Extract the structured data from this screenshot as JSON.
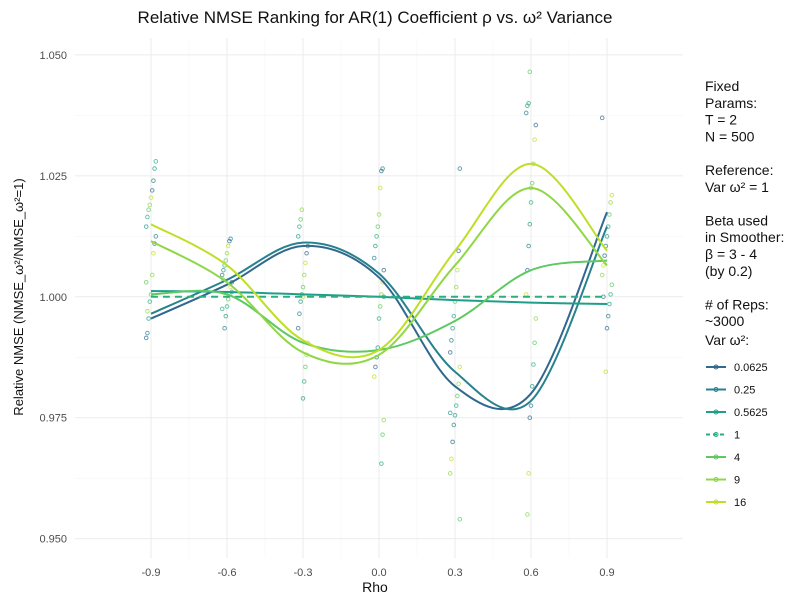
{
  "chart_data": {
    "type": "line",
    "title": "Relative NMSE Ranking for AR(1) Coefficient ρ vs. ω² Variance",
    "xlabel": "Rho",
    "ylabel": "Relative NMSE (NMSE_ω²/NMSE_ω²=1)",
    "xlim": [
      -1.2,
      1.2
    ],
    "ylim": [
      0.946,
      1.0535
    ],
    "x_ticks": [
      -0.9,
      -0.6,
      -0.3,
      0.0,
      0.3,
      0.6,
      0.9
    ],
    "x_tick_labels": [
      "-0.9",
      "-0.6",
      "-0.3",
      "0.0",
      "0.3",
      "0.6",
      "0.9"
    ],
    "y_ticks": [
      0.95,
      0.975,
      1.0,
      1.025,
      1.05
    ],
    "y_tick_labels": [
      "0.950",
      "0.975",
      "1.000",
      "1.025",
      "1.050"
    ],
    "grid": true,
    "legend_position": "right",
    "legend_title": "Var ω²:",
    "side_text": [
      "Fixed",
      "Params:",
      "T = 2",
      "N = 500",
      "",
      "Reference:",
      "Var ω² = 1",
      "",
      "Beta used",
      "in Smoother:",
      "β = 3 - 4",
      "(by 0.2)",
      "",
      "# of Reps:",
      "~3000"
    ],
    "series": [
      {
        "name": "0.0625",
        "color": "#31688e",
        "dash": false,
        "x": [
          -0.9,
          -0.6,
          -0.3,
          0.0,
          0.3,
          0.6,
          0.9
        ],
        "y": [
          0.9955,
          1.0025,
          1.0105,
          1.004,
          0.9815,
          0.98,
          1.0175
        ]
      },
      {
        "name": "0.25",
        "color": "#26828e",
        "dash": false,
        "x": [
          -0.9,
          -0.6,
          -0.3,
          0.0,
          0.3,
          0.6,
          0.9
        ],
        "y": [
          0.9965,
          1.0035,
          1.0112,
          1.0048,
          0.9845,
          0.9785,
          1.0145
        ]
      },
      {
        "name": "0.5625",
        "color": "#1f9e89",
        "dash": false,
        "x": [
          -0.9,
          -0.6,
          -0.3,
          0.0,
          0.3,
          0.6,
          0.9
        ],
        "y": [
          1.0012,
          1.001,
          1.0005,
          1.0,
          0.9993,
          0.9988,
          0.9985
        ]
      },
      {
        "name": "1",
        "color": "#29af7f",
        "dash": true,
        "x": [
          -0.9,
          -0.6,
          -0.3,
          0.0,
          0.3,
          0.6,
          0.9
        ],
        "y": [
          1.0,
          1.0,
          1.0,
          1.0,
          1.0,
          1.0,
          1.0
        ]
      },
      {
        "name": "4",
        "color": "#5ec962",
        "dash": false,
        "x": [
          -0.9,
          -0.6,
          -0.3,
          0.0,
          0.3,
          0.6,
          0.9
        ],
        "y": [
          1.0005,
          1.0005,
          0.9905,
          0.989,
          0.995,
          1.0055,
          1.0075
        ]
      },
      {
        "name": "9",
        "color": "#8fd744",
        "dash": false,
        "x": [
          -0.9,
          -0.6,
          -0.3,
          0.0,
          0.3,
          0.6,
          0.9
        ],
        "y": [
          1.0115,
          1.003,
          0.9885,
          0.988,
          1.0065,
          1.0225,
          1.0065
        ]
      },
      {
        "name": "16",
        "color": "#bddf26",
        "dash": false,
        "x": [
          -0.9,
          -0.6,
          -0.3,
          0.0,
          0.3,
          0.6,
          0.9
        ],
        "y": [
          1.015,
          1.0065,
          0.991,
          0.989,
          1.0095,
          1.0275,
          1.0095
        ]
      }
    ],
    "points_note": "jittered raw points around each rho value",
    "points": [
      {
        "x": -0.9,
        "y": [
          0.9915,
          0.9925,
          0.9955,
          0.999,
          1.0005,
          1.0045,
          1.009,
          1.011,
          1.0125,
          1.0145,
          1.0165,
          1.018,
          1.019,
          1.0205,
          1.022,
          1.024,
          1.0265,
          1.028,
          1.003,
          0.997
        ]
      },
      {
        "x": -0.6,
        "y": [
          0.9935,
          0.996,
          0.998,
          0.9995,
          1.0005,
          1.002,
          1.003,
          1.0045,
          1.0055,
          1.0065,
          1.0075,
          1.009,
          1.0105,
          1.0115,
          1.012,
          1.001,
          0.9975,
          1.0035
        ]
      },
      {
        "x": -0.3,
        "y": [
          0.979,
          0.9825,
          0.9855,
          0.988,
          0.9905,
          0.9935,
          0.9965,
          0.999,
          1.0005,
          1.002,
          1.0045,
          1.007,
          1.009,
          1.0105,
          1.0125,
          1.0145,
          1.016,
          1.018,
          1.0
        ]
      },
      {
        "x": 0.0,
        "y": [
          0.9655,
          0.9715,
          0.9745,
          0.9835,
          0.9855,
          0.9875,
          0.9895,
          0.9955,
          0.998,
          1.0005,
          1.003,
          1.0055,
          1.008,
          1.0105,
          1.0125,
          1.0145,
          1.017,
          1.0225,
          1.026,
          1.0265,
          1.0
        ]
      },
      {
        "x": 0.3,
        "y": [
          0.954,
          0.9635,
          0.9665,
          0.97,
          0.9735,
          0.9755,
          0.9775,
          0.9795,
          0.982,
          0.9855,
          0.9885,
          0.991,
          0.9935,
          0.996,
          0.999,
          1.002,
          1.0055,
          1.0095,
          1.0265,
          0.976
        ]
      },
      {
        "x": 0.6,
        "y": [
          0.955,
          0.9635,
          0.975,
          0.9775,
          0.9815,
          0.986,
          0.9905,
          0.9955,
          1.0005,
          1.0055,
          1.0105,
          1.015,
          1.0195,
          1.0235,
          1.0275,
          1.0325,
          1.0355,
          1.038,
          1.0395,
          1.04,
          1.0465,
          1.0225
        ]
      },
      {
        "x": 0.9,
        "y": [
          0.9845,
          0.9935,
          0.996,
          0.9985,
          1.0005,
          1.0025,
          1.0045,
          1.0065,
          1.0085,
          1.0105,
          1.0125,
          1.0145,
          1.017,
          1.0195,
          1.021,
          1.037,
          1.0
        ]
      }
    ]
  }
}
